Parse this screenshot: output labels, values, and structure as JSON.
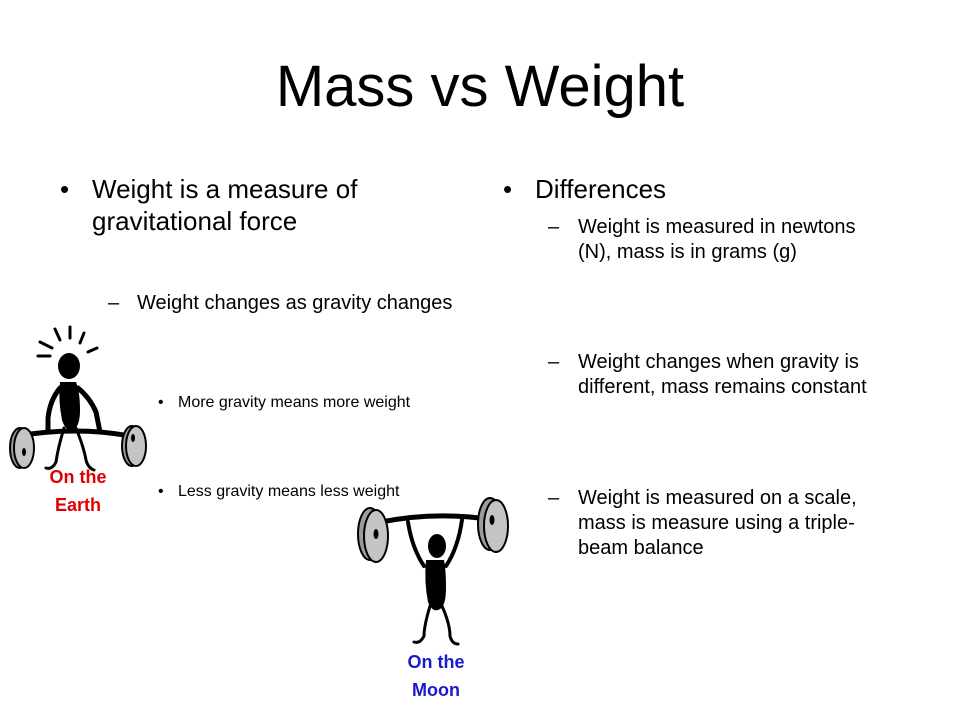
{
  "slide": {
    "title": "Mass vs Weight",
    "left": {
      "point": "Weight is a measure of gravitational  force",
      "sub": "Weight changes as gravity changes",
      "subsub": [
        "More gravity means more weight",
        "Less gravity means less weight"
      ]
    },
    "right": {
      "point": "Differences",
      "subs": [
        "Weight is measured in newtons (N), mass is in grams (g)",
        "Weight changes when gravity is different, mass remains constant",
        "Weight is measured on a scale, mass is measure using a triple-beam balance"
      ]
    },
    "earth_label": [
      "On the",
      "Earth"
    ],
    "moon_label": [
      "On the",
      "Moon"
    ]
  },
  "colors": {
    "earth_label": "#e00000",
    "moon_label": "#1a1acc",
    "plate_fill": "#9c9c9c"
  },
  "icons": [
    "weightlifter-earth-icon",
    "weightlifter-moon-icon"
  ]
}
